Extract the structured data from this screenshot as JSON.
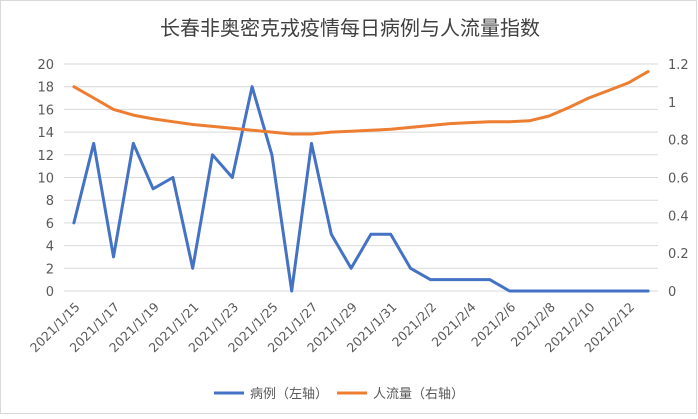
{
  "chart_data": {
    "type": "line",
    "title": "长春非奥密克戎疫情每日病例与人流量指数",
    "x": [
      "2021/1/15",
      "2021/1/16",
      "2021/1/17",
      "2021/1/18",
      "2021/1/19",
      "2021/1/20",
      "2021/1/21",
      "2021/1/22",
      "2021/1/23",
      "2021/1/24",
      "2021/1/25",
      "2021/1/26",
      "2021/1/27",
      "2021/1/28",
      "2021/1/29",
      "2021/1/30",
      "2021/1/31",
      "2021/2/1",
      "2021/2/2",
      "2021/2/3",
      "2021/2/4",
      "2021/2/5",
      "2021/2/6",
      "2021/2/7",
      "2021/2/8",
      "2021/2/9",
      "2021/2/10",
      "2021/2/11",
      "2021/2/12",
      "2021/2/13"
    ],
    "x_tick_labels": [
      "2021/1/15",
      "2021/1/17",
      "2021/1/19",
      "2021/1/21",
      "2021/1/23",
      "2021/1/25",
      "2021/1/27",
      "2021/1/29",
      "2021/1/31",
      "2021/2/2",
      "2021/2/4",
      "2021/2/6",
      "2021/2/8",
      "2021/2/10",
      "2021/2/12"
    ],
    "y_left": {
      "ylim": [
        0,
        20
      ],
      "ticks": [
        "0",
        "2",
        "4",
        "6",
        "8",
        "10",
        "12",
        "14",
        "16",
        "18",
        "20"
      ]
    },
    "y_right": {
      "ylim": [
        0,
        1.2
      ],
      "ticks": [
        "0",
        "0.2",
        "0.4",
        "0.6",
        "0.8",
        "1",
        "1.2"
      ]
    },
    "series": [
      {
        "name": "病例（左轴）",
        "axis": "left",
        "color": "#4472c4",
        "values": [
          6,
          13,
          3,
          13,
          9,
          10,
          2,
          12,
          10,
          18,
          12,
          0,
          13,
          5,
          2,
          5,
          5,
          2,
          1,
          1,
          1,
          1,
          0,
          0,
          0,
          0,
          0,
          0,
          0,
          0
        ]
      },
      {
        "name": "人流量（右轴）",
        "axis": "right",
        "color": "#ed7d31",
        "values": [
          1.08,
          1.02,
          0.96,
          0.93,
          0.91,
          0.895,
          0.88,
          0.87,
          0.86,
          0.85,
          0.84,
          0.83,
          0.83,
          0.84,
          0.845,
          0.85,
          0.855,
          0.865,
          0.875,
          0.885,
          0.89,
          0.895,
          0.895,
          0.9,
          0.925,
          0.97,
          1.02,
          1.06,
          1.1,
          1.16
        ]
      }
    ],
    "grid": true,
    "legend": "bottom"
  }
}
